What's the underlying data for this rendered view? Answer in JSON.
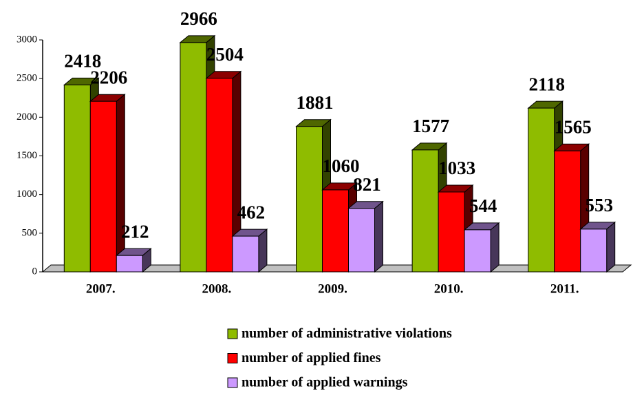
{
  "chart_data": {
    "type": "bar",
    "categories": [
      "2007.",
      "2008.",
      "2009.",
      "2010.",
      "2011."
    ],
    "series": [
      {
        "name": "number of administrative violations",
        "color": "#8fbc00",
        "values": [
          2418,
          2966,
          1881,
          1577,
          2118
        ]
      },
      {
        "name": "number of applied fines",
        "color": "#ff0000",
        "values": [
          2206,
          2504,
          1060,
          1033,
          1565
        ]
      },
      {
        "name": "number of applied warnings",
        "color": "#cc99ff",
        "values": [
          212,
          462,
          821,
          544,
          553
        ]
      }
    ],
    "ylim": [
      0,
      3000
    ],
    "yticks": [
      0,
      500,
      1000,
      1500,
      2000,
      2500,
      3000
    ],
    "grid": false
  }
}
